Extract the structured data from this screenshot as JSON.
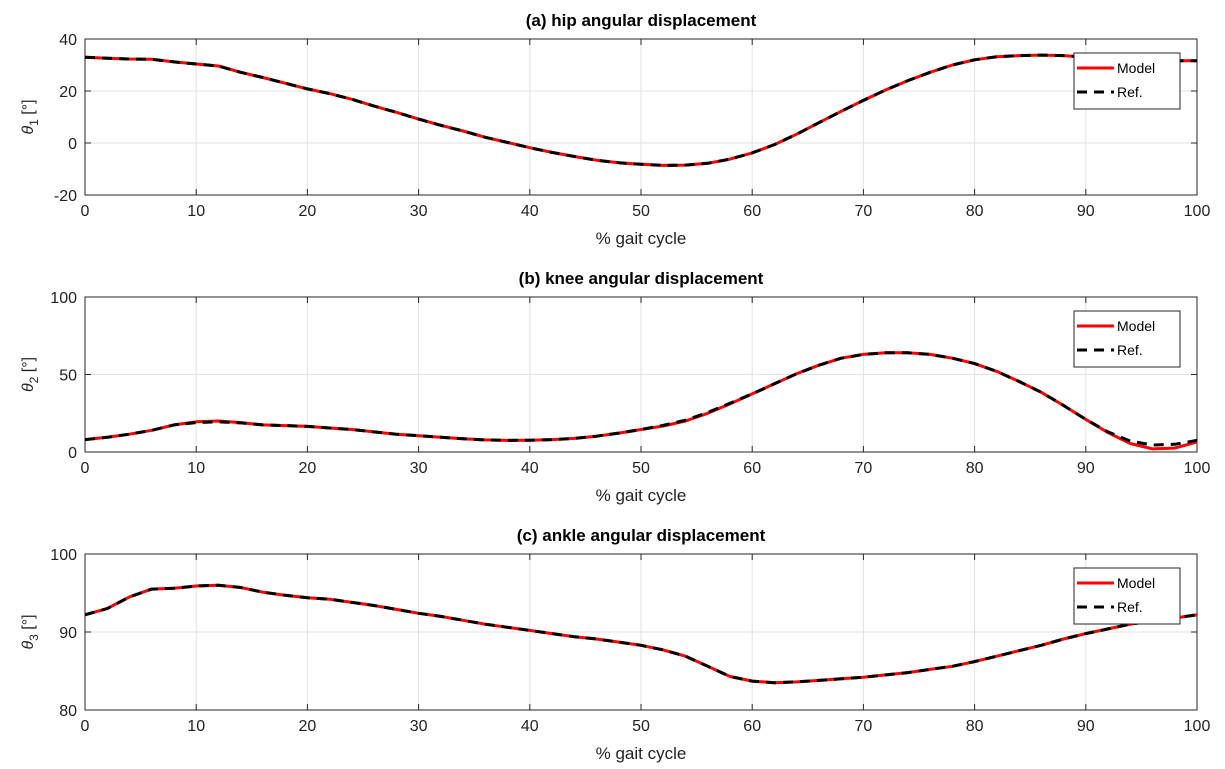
{
  "figure": {
    "background": "#ffffff",
    "grid": true,
    "colors": {
      "model": "#ff0000",
      "ref": "#000000",
      "grid": "#e2e2e2",
      "axis": "#262626"
    }
  },
  "chart_data": [
    {
      "type": "line",
      "title": "(a) hip angular displacement",
      "xlabel": "% gait cycle",
      "ylabel": {
        "symbol": "θ",
        "sub": "1",
        "unit": " [°]"
      },
      "xlim": [
        0,
        100
      ],
      "ylim": [
        -20,
        40
      ],
      "xticks": [
        0,
        10,
        20,
        30,
        40,
        50,
        60,
        70,
        80,
        90,
        100
      ],
      "yticks": [
        -20,
        0,
        20,
        40
      ],
      "legend": {
        "position": "top-right",
        "entries": [
          "Model",
          "Ref."
        ]
      },
      "x": [
        0,
        2,
        4,
        6,
        8,
        10,
        12,
        14,
        16,
        18,
        20,
        22,
        24,
        26,
        28,
        30,
        32,
        34,
        36,
        38,
        40,
        42,
        44,
        46,
        48,
        50,
        52,
        54,
        56,
        58,
        60,
        62,
        64,
        66,
        68,
        70,
        72,
        74,
        76,
        78,
        80,
        82,
        84,
        86,
        88,
        90,
        92,
        94,
        96,
        98,
        100
      ],
      "series": [
        {
          "name": "Model",
          "style": "solid",
          "values": [
            33,
            32.6,
            32.3,
            32.2,
            31.2,
            30.4,
            29.6,
            27.2,
            25.2,
            23,
            20.8,
            19,
            16.8,
            14.2,
            11.8,
            9.2,
            6.8,
            4.6,
            2.2,
            0.2,
            -1.8,
            -3.6,
            -5.2,
            -6.6,
            -7.6,
            -8.2,
            -8.6,
            -8.5,
            -7.8,
            -6.2,
            -3.8,
            -0.6,
            3.4,
            7.8,
            12.2,
            16.4,
            20.4,
            24,
            27.2,
            30,
            32,
            33.2,
            33.6,
            33.8,
            33.6,
            33,
            32.4,
            32,
            31.8,
            31.6,
            31.6
          ]
        },
        {
          "name": "Ref.",
          "style": "dashed",
          "values": [
            33,
            32.6,
            32.3,
            32.2,
            31.2,
            30.4,
            29.6,
            27.2,
            25.2,
            23,
            20.8,
            19,
            16.8,
            14.2,
            11.8,
            9.2,
            6.8,
            4.6,
            2.2,
            0.2,
            -1.8,
            -3.6,
            -5.2,
            -6.6,
            -7.6,
            -8.2,
            -8.6,
            -8.5,
            -7.8,
            -6.2,
            -3.8,
            -0.6,
            3.4,
            7.8,
            12.2,
            16.4,
            20.4,
            24,
            27.2,
            30,
            32,
            33.2,
            33.6,
            33.8,
            33.6,
            33,
            32.4,
            32,
            31.8,
            31.6,
            31.6
          ]
        }
      ]
    },
    {
      "type": "line",
      "title": "(b) knee angular displacement",
      "xlabel": "% gait cycle",
      "ylabel": {
        "symbol": "θ",
        "sub": "2",
        "unit": " [°]"
      },
      "xlim": [
        0,
        100
      ],
      "ylim": [
        0,
        100
      ],
      "xticks": [
        0,
        10,
        20,
        30,
        40,
        50,
        60,
        70,
        80,
        90,
        100
      ],
      "yticks": [
        0,
        50,
        100
      ],
      "legend": {
        "position": "top-right",
        "entries": [
          "Model",
          "Ref."
        ]
      },
      "x": [
        0,
        2,
        4,
        6,
        8,
        10,
        12,
        14,
        16,
        18,
        20,
        22,
        24,
        26,
        28,
        30,
        32,
        34,
        36,
        38,
        40,
        42,
        44,
        46,
        48,
        50,
        52,
        54,
        56,
        58,
        60,
        62,
        64,
        66,
        68,
        70,
        72,
        74,
        76,
        78,
        80,
        82,
        84,
        86,
        88,
        90,
        92,
        94,
        96,
        98,
        100
      ],
      "series": [
        {
          "name": "Model",
          "style": "solid",
          "values": [
            8,
            9.5,
            11.5,
            14,
            17.5,
            19.5,
            20,
            19,
            17.5,
            17,
            16.5,
            15.5,
            14.5,
            13,
            11.5,
            10.5,
            9.5,
            8.5,
            7.8,
            7.5,
            7.6,
            8,
            8.8,
            10.2,
            12.2,
            14.5,
            16.8,
            20,
            25,
            31,
            37.5,
            44,
            50.5,
            56,
            60.5,
            63,
            64,
            64,
            63,
            60.5,
            57,
            52,
            45.5,
            38.5,
            30,
            21,
            12.5,
            5.5,
            2,
            2.5,
            6.5
          ]
        },
        {
          "name": "Ref.",
          "style": "dashed",
          "values": [
            8,
            9.5,
            11.5,
            14,
            17.5,
            19,
            19.5,
            18.8,
            17.5,
            17,
            16.5,
            15.5,
            14.5,
            13,
            11.5,
            10.5,
            9.5,
            8.5,
            7.8,
            7.5,
            7.6,
            8,
            8.8,
            10.2,
            12.2,
            14.5,
            17.2,
            20.5,
            25.5,
            31.5,
            37.5,
            44,
            50.5,
            56,
            60.5,
            63,
            64,
            64,
            63,
            60.5,
            57,
            52,
            45.5,
            38.5,
            30,
            21,
            13,
            7,
            4.5,
            5,
            7.5
          ]
        }
      ]
    },
    {
      "type": "line",
      "title": "(c) ankle angular displacement",
      "xlabel": "% gait cycle",
      "ylabel": {
        "symbol": "θ",
        "sub": "3",
        "unit": " [°]"
      },
      "xlim": [
        0,
        100
      ],
      "ylim": [
        80,
        100
      ],
      "xticks": [
        0,
        10,
        20,
        30,
        40,
        50,
        60,
        70,
        80,
        90,
        100
      ],
      "yticks": [
        80,
        90,
        100
      ],
      "legend": {
        "position": "top-right",
        "entries": [
          "Model",
          "Ref."
        ]
      },
      "x": [
        0,
        2,
        4,
        6,
        8,
        10,
        12,
        14,
        16,
        18,
        20,
        22,
        24,
        26,
        28,
        30,
        32,
        34,
        36,
        38,
        40,
        42,
        44,
        46,
        48,
        50,
        52,
        54,
        56,
        58,
        60,
        62,
        64,
        66,
        68,
        70,
        72,
        74,
        76,
        78,
        80,
        82,
        84,
        86,
        88,
        90,
        92,
        94,
        96,
        98,
        100
      ],
      "series": [
        {
          "name": "Model",
          "style": "solid",
          "values": [
            92.2,
            93,
            94.5,
            95.5,
            95.6,
            95.9,
            96,
            95.7,
            95.1,
            94.7,
            94.4,
            94.2,
            93.8,
            93.4,
            92.9,
            92.4,
            92,
            91.5,
            91,
            90.6,
            90.2,
            89.8,
            89.4,
            89.1,
            88.7,
            88.3,
            87.7,
            86.9,
            85.6,
            84.3,
            83.7,
            83.5,
            83.6,
            83.8,
            84,
            84.2,
            84.5,
            84.8,
            85.2,
            85.6,
            86.2,
            86.9,
            87.6,
            88.3,
            89.1,
            89.8,
            90.4,
            91,
            91.4,
            91.8,
            92.2
          ]
        },
        {
          "name": "Ref.",
          "style": "dashed",
          "values": [
            92.2,
            93,
            94.5,
            95.5,
            95.6,
            95.9,
            96,
            95.7,
            95.1,
            94.7,
            94.4,
            94.2,
            93.8,
            93.4,
            92.9,
            92.4,
            92,
            91.5,
            91,
            90.6,
            90.2,
            89.8,
            89.4,
            89.1,
            88.7,
            88.3,
            87.7,
            86.9,
            85.6,
            84.3,
            83.7,
            83.5,
            83.6,
            83.8,
            84,
            84.2,
            84.5,
            84.8,
            85.2,
            85.6,
            86.2,
            86.9,
            87.6,
            88.3,
            89.1,
            89.8,
            90.4,
            91,
            91.4,
            91.8,
            92.2
          ]
        }
      ]
    }
  ]
}
